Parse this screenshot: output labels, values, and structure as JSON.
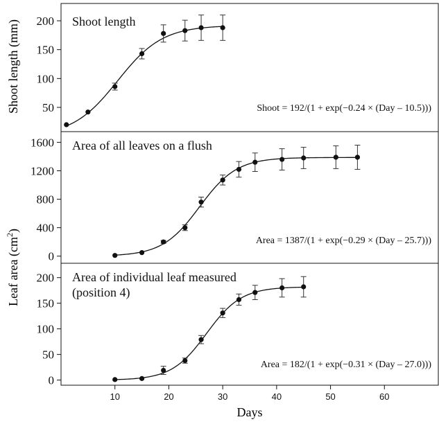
{
  "x_axis": {
    "label": "Days",
    "range": [
      0,
      70
    ],
    "ticks": [
      10,
      20,
      30,
      40,
      50,
      60
    ],
    "tick_labels": [
      "10",
      "20",
      "30",
      "40",
      "50",
      "60"
    ]
  },
  "colors": {
    "ink": "#111111",
    "background": "#ffffff"
  },
  "chart_data": [
    {
      "type": "line",
      "title": "Shoot length",
      "title_lines": [
        "Shoot length"
      ],
      "ylabel": "Shoot length (mm)",
      "ylim": [
        8,
        230
      ],
      "y_ticks": [
        50,
        100,
        150,
        200
      ],
      "y_tick_labels": [
        "50",
        "100",
        "150",
        "200"
      ],
      "equation": "Shoot = 192/(1 + exp(−0.24 × (Day – 10.5)))",
      "fit": {
        "a": 192,
        "k": 0.24,
        "x0": 10.5,
        "x_range": [
          1,
          30
        ]
      },
      "series": [
        {
          "x": [
            1,
            5,
            10,
            15,
            19,
            23,
            26,
            30
          ],
          "y": [
            20,
            42,
            86,
            143,
            178,
            183,
            188,
            188
          ],
          "error": [
            0,
            0,
            6,
            9,
            15,
            18,
            22,
            22
          ]
        }
      ]
    },
    {
      "type": "line",
      "title": "Area of all leaves on a flush",
      "title_lines": [
        "Area of all leaves on a flush"
      ],
      "ylabel": "Leaf area (cm2)",
      "ylim": [
        -100,
        1750
      ],
      "y_ticks": [
        0,
        400,
        800,
        1200,
        1600
      ],
      "y_tick_labels": [
        "0",
        "400",
        "800",
        "1200",
        "1600"
      ],
      "equation": "Area = 1387/(1 + exp(−0.29 × (Day – 25.7)))",
      "fit": {
        "a": 1387,
        "k": 0.29,
        "x0": 25.7,
        "x_range": [
          10,
          55
        ]
      },
      "series": [
        {
          "x": [
            10,
            15,
            19,
            23,
            26,
            30,
            33,
            36,
            41,
            45,
            51,
            55
          ],
          "y": [
            10,
            50,
            200,
            400,
            760,
            1070,
            1220,
            1320,
            1360,
            1380,
            1390,
            1390
          ],
          "error": [
            0,
            0,
            20,
            40,
            70,
            70,
            110,
            130,
            150,
            150,
            160,
            170
          ]
        }
      ]
    },
    {
      "type": "line",
      "title": "Area of individual leaf measured (position 4)",
      "title_lines": [
        "Area of individual leaf measured",
        "(position 4)"
      ],
      "ylabel": "",
      "ylim": [
        -10,
        228
      ],
      "y_ticks": [
        0,
        50,
        100,
        150,
        200
      ],
      "y_tick_labels": [
        "0",
        "50",
        "100",
        "150",
        "200"
      ],
      "equation": "Area = 182/(1 + exp(−0.31 × (Day – 27.0)))",
      "fit": {
        "a": 182,
        "k": 0.31,
        "x0": 27.0,
        "x_range": [
          10,
          45
        ]
      },
      "series": [
        {
          "x": [
            10,
            15,
            19,
            23,
            26,
            30,
            33,
            36,
            41,
            45
          ],
          "y": [
            1,
            3,
            19,
            38,
            79,
            131,
            157,
            171,
            180,
            182
          ],
          "error": [
            0,
            0,
            8,
            5,
            8,
            9,
            11,
            14,
            18,
            20
          ]
        }
      ]
    }
  ]
}
